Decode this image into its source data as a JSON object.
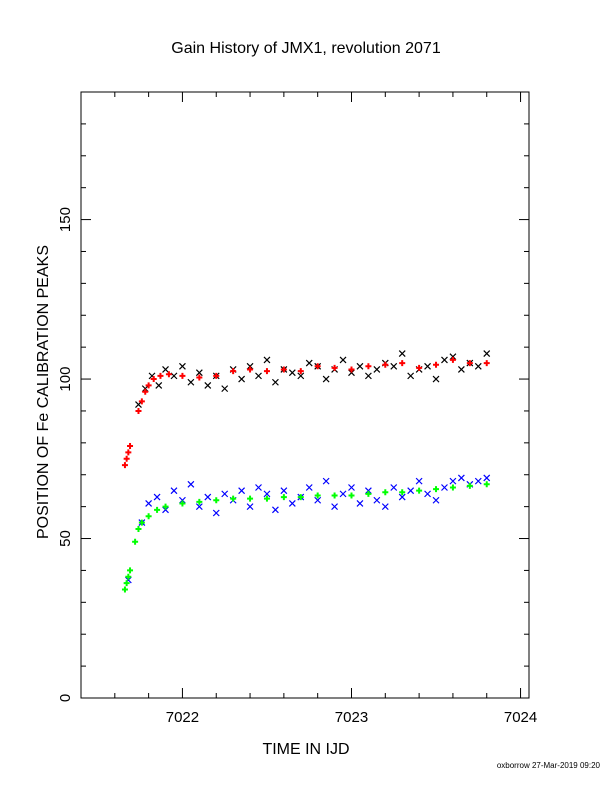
{
  "chart_data": {
    "type": "scatter",
    "title": "Gain History of JMX1, revolution 2071",
    "xlabel": "TIME IN IJD",
    "ylabel": "POSITION OF Fe CALIBRATION PEAKS",
    "xlim": [
      7021.4,
      7024.05
    ],
    "ylim": [
      0,
      190
    ],
    "x_ticks": [
      7022,
      7023,
      7024
    ],
    "x_tick_labels": [
      "7022",
      "7023",
      "7024"
    ],
    "y_ticks": [
      0,
      50,
      100,
      150
    ],
    "y_tick_labels": [
      "0",
      "50",
      "100",
      "150"
    ],
    "grid": false,
    "legend": "none",
    "credit": "oxborrow 27-Mar-2019 09:20",
    "series": [
      {
        "marker": "x",
        "color": "#000000",
        "x": [
          7021.74,
          7021.78,
          7021.82,
          7021.86,
          7021.9,
          7021.95,
          7022.0,
          7022.05,
          7022.1,
          7022.15,
          7022.2,
          7022.25,
          7022.3,
          7022.35,
          7022.4,
          7022.45,
          7022.5,
          7022.55,
          7022.6,
          7022.65,
          7022.7,
          7022.75,
          7022.8,
          7022.85,
          7022.9,
          7022.95,
          7023.0,
          7023.05,
          7023.1,
          7023.15,
          7023.2,
          7023.25,
          7023.3,
          7023.35,
          7023.4,
          7023.45,
          7023.5,
          7023.55,
          7023.6,
          7023.65,
          7023.7,
          7023.75,
          7023.8
        ],
        "y": [
          92,
          97,
          101,
          98,
          103,
          101,
          104,
          99,
          102,
          98,
          101,
          97,
          103,
          100,
          104,
          101,
          106,
          99,
          103,
          102,
          101,
          105,
          104,
          100,
          103,
          106,
          102,
          104,
          101,
          103,
          105,
          104,
          108,
          101,
          103,
          104,
          100,
          106,
          107,
          103,
          105,
          104,
          108
        ]
      },
      {
        "marker": "+",
        "color": "#ff0000",
        "x": [
          7021.66,
          7021.67,
          7021.68,
          7021.69,
          7021.74,
          7021.76,
          7021.78,
          7021.8,
          7021.83,
          7021.87,
          7021.92,
          7022.0,
          7022.1,
          7022.2,
          7022.3,
          7022.4,
          7022.5,
          7022.6,
          7022.7,
          7022.8,
          7022.9,
          7023.0,
          7023.1,
          7023.2,
          7023.3,
          7023.4,
          7023.5,
          7023.6,
          7023.7,
          7023.8
        ],
        "y": [
          73,
          75,
          77,
          79,
          90,
          93,
          96,
          98,
          100,
          101,
          101.5,
          101,
          100.5,
          101,
          102.5,
          103,
          102.5,
          103,
          102.5,
          104,
          103.5,
          103,
          104,
          104.5,
          105,
          103.5,
          104.5,
          106,
          105,
          105
        ]
      },
      {
        "marker": "x",
        "color": "#0000ff",
        "x": [
          7021.68,
          7021.76,
          7021.8,
          7021.85,
          7021.9,
          7021.95,
          7022.0,
          7022.05,
          7022.1,
          7022.15,
          7022.2,
          7022.25,
          7022.3,
          7022.35,
          7022.4,
          7022.45,
          7022.5,
          7022.55,
          7022.6,
          7022.65,
          7022.7,
          7022.75,
          7022.8,
          7022.85,
          7022.9,
          7022.95,
          7023.0,
          7023.05,
          7023.1,
          7023.15,
          7023.2,
          7023.25,
          7023.3,
          7023.35,
          7023.4,
          7023.45,
          7023.5,
          7023.55,
          7023.6,
          7023.65,
          7023.7,
          7023.75,
          7023.8
        ],
        "y": [
          37,
          55,
          61,
          63,
          59,
          65,
          62,
          67,
          60,
          63,
          58,
          64,
          62,
          65,
          60,
          66,
          64,
          59,
          65,
          61,
          63,
          66,
          62,
          68,
          60,
          64,
          66,
          61,
          65,
          62,
          60,
          66,
          63,
          65,
          68,
          64,
          62,
          66,
          68,
          69,
          67,
          68,
          69
        ]
      },
      {
        "marker": "+",
        "color": "#00ff00",
        "x": [
          7021.66,
          7021.67,
          7021.68,
          7021.69,
          7021.72,
          7021.74,
          7021.76,
          7021.8,
          7021.85,
          7021.9,
          7022.0,
          7022.1,
          7022.2,
          7022.3,
          7022.4,
          7022.5,
          7022.6,
          7022.7,
          7022.8,
          7022.9,
          7023.0,
          7023.1,
          7023.2,
          7023.3,
          7023.4,
          7023.5,
          7023.6,
          7023.7,
          7023.8
        ],
        "y": [
          34,
          36,
          38,
          40,
          49,
          53,
          55,
          57,
          59,
          60,
          61,
          61.5,
          62,
          62.5,
          62.5,
          62.5,
          63,
          63,
          63.5,
          63.5,
          63.5,
          64,
          64.5,
          64.5,
          65,
          65.5,
          66,
          66.5,
          67
        ]
      }
    ]
  }
}
